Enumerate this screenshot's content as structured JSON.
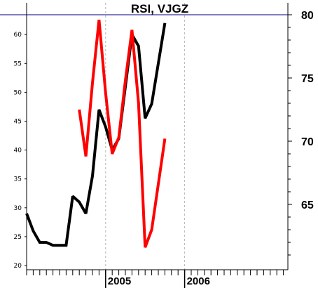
{
  "chart_data": {
    "type": "line",
    "title": "RSI, VJGZ",
    "left_axis": {
      "ylim": [
        19,
        63.5
      ],
      "ticks": [
        20,
        25,
        30,
        35,
        40,
        45,
        50,
        55,
        60
      ]
    },
    "right_axis": {
      "ylim": [
        60.3,
        81.4
      ],
      "ticks": [
        65,
        70,
        75,
        80
      ]
    },
    "x_tick_labels": [
      {
        "label": "2005",
        "month_index": 12
      },
      {
        "label": "2006",
        "month_index": 24
      }
    ],
    "month_count": 36,
    "reference_line": {
      "axis": "right",
      "value": 80,
      "color": "#000080"
    },
    "grid": "vertical dashed at year boundaries",
    "series": [
      {
        "axis": "left",
        "color": "#000000",
        "x": [
          0,
          1,
          2,
          3,
          4,
          5,
          6,
          7,
          8,
          9,
          10,
          11,
          12,
          13,
          14,
          15,
          16,
          17,
          18,
          19,
          20,
          21,
          22,
          23,
          24
        ],
        "values": [
          29,
          26,
          24,
          24,
          23.5,
          23.5,
          23.5,
          32,
          31,
          29,
          35.5,
          47,
          44,
          40,
          42,
          51,
          60,
          58,
          45.5,
          48,
          55,
          62,
          null,
          null,
          null
        ]
      },
      {
        "axis": "right",
        "color": "#ff0000",
        "x": [
          8,
          9,
          10,
          11,
          12,
          13,
          14,
          15,
          16,
          17,
          18,
          19,
          20,
          21,
          22
        ],
        "values": [
          72.5,
          68.8,
          74.6,
          79.6,
          73.8,
          69.0,
          70.3,
          74.8,
          78.8,
          73.0,
          61.6,
          63.0,
          66.6,
          70.2,
          null
        ]
      }
    ]
  }
}
